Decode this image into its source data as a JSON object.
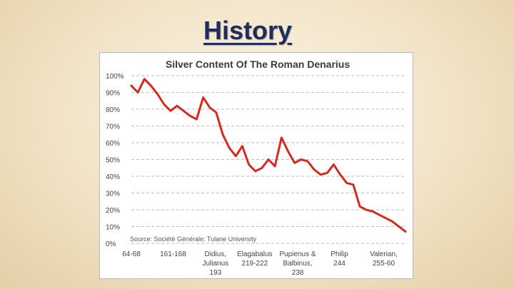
{
  "slide": {
    "title": "History"
  },
  "chart_data": {
    "type": "line",
    "title": "Silver Content Of The Roman Denarius",
    "source": "Source: Société Générale; Tulane University",
    "xlabel": "",
    "ylabel": "",
    "ylim": [
      0,
      100
    ],
    "y_ticks": [
      "100%",
      "90%",
      "80%",
      "70%",
      "60%",
      "50%",
      "40%",
      "30%",
      "20%",
      "10%",
      "0%"
    ],
    "x_tick_labels": [
      {
        "lines": [
          "64-68"
        ],
        "pos": 0
      },
      {
        "lines": [
          "161-168"
        ],
        "pos": 6.7
      },
      {
        "lines": [
          "Didius,",
          "Julianus",
          "193"
        ],
        "pos": 13.5
      },
      {
        "lines": [
          "Elagabalus",
          "219-222"
        ],
        "pos": 19.8
      },
      {
        "lines": [
          "Pupienus &",
          "Balbinus,",
          "238"
        ],
        "pos": 26.7
      },
      {
        "lines": [
          "Philip",
          "244"
        ],
        "pos": 33.4
      },
      {
        "lines": [
          "Valerian,",
          "255-60"
        ],
        "pos": 40.5
      }
    ],
    "x_range": [
      0,
      44
    ],
    "grid": true,
    "line_color": "#d42a1f",
    "series": [
      {
        "values": [
          94,
          90,
          98,
          94,
          89,
          83,
          79,
          82,
          79,
          76,
          74,
          87,
          81,
          78,
          65,
          57,
          52,
          58,
          47,
          43,
          45,
          50,
          46,
          63,
          55,
          48,
          50,
          49,
          44,
          41,
          42,
          47,
          41,
          36,
          35,
          22,
          20,
          19,
          17,
          15,
          13,
          10,
          7
        ]
      }
    ]
  }
}
